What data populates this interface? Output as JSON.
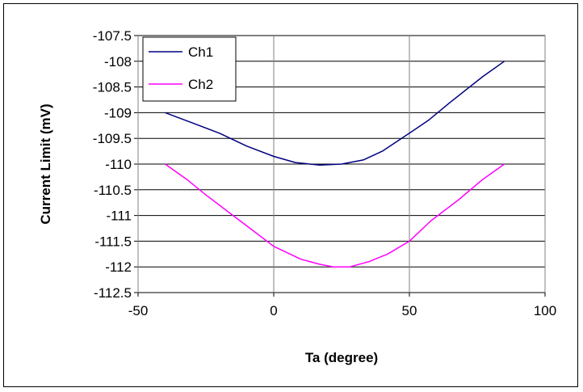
{
  "chart_data": {
    "type": "line",
    "title": "",
    "xlabel": "Ta (degree)",
    "ylabel": "Current Limit (mV)",
    "xlim": [
      -50,
      100
    ],
    "ylim": [
      -112.5,
      -107.5
    ],
    "xticks": [
      -50,
      0,
      50,
      100
    ],
    "yticks": [
      -107.5,
      -108,
      -108.5,
      -109,
      -109.5,
      -110,
      -110.5,
      -111,
      -111.5,
      -112,
      -112.5
    ],
    "xtick_labels": [
      "-50",
      "0",
      "50",
      "100"
    ],
    "ytick_labels": [
      "-107.5",
      "-108",
      "-108.5",
      "-109",
      "-109.5",
      "-110",
      "-110.5",
      "-111",
      "-111.5",
      "-112",
      "-112.5"
    ],
    "grid": true,
    "legend_position": "top-left",
    "series": [
      {
        "name": "Ch1",
        "color": "#000080",
        "x": [
          -40,
          -30,
          -20,
          -10,
          0,
          8,
          17,
          25,
          33,
          40,
          50,
          57,
          65,
          77,
          85
        ],
        "y": [
          -109.0,
          -109.2,
          -109.4,
          -109.65,
          -109.85,
          -109.97,
          -110.02,
          -110.0,
          -109.92,
          -109.75,
          -109.4,
          -109.15,
          -108.8,
          -108.3,
          -108.0
        ]
      },
      {
        "name": "Ch2",
        "color": "#ff00ff",
        "x": [
          -40,
          -32,
          -25,
          -15,
          -5,
          0,
          10,
          17,
          22,
          28,
          35,
          42,
          50,
          58,
          68,
          77,
          85
        ],
        "y": [
          -110.0,
          -110.3,
          -110.6,
          -111.0,
          -111.4,
          -111.6,
          -111.85,
          -111.95,
          -112.0,
          -112.0,
          -111.9,
          -111.75,
          -111.5,
          -111.1,
          -110.7,
          -110.3,
          -110.0
        ]
      }
    ]
  }
}
